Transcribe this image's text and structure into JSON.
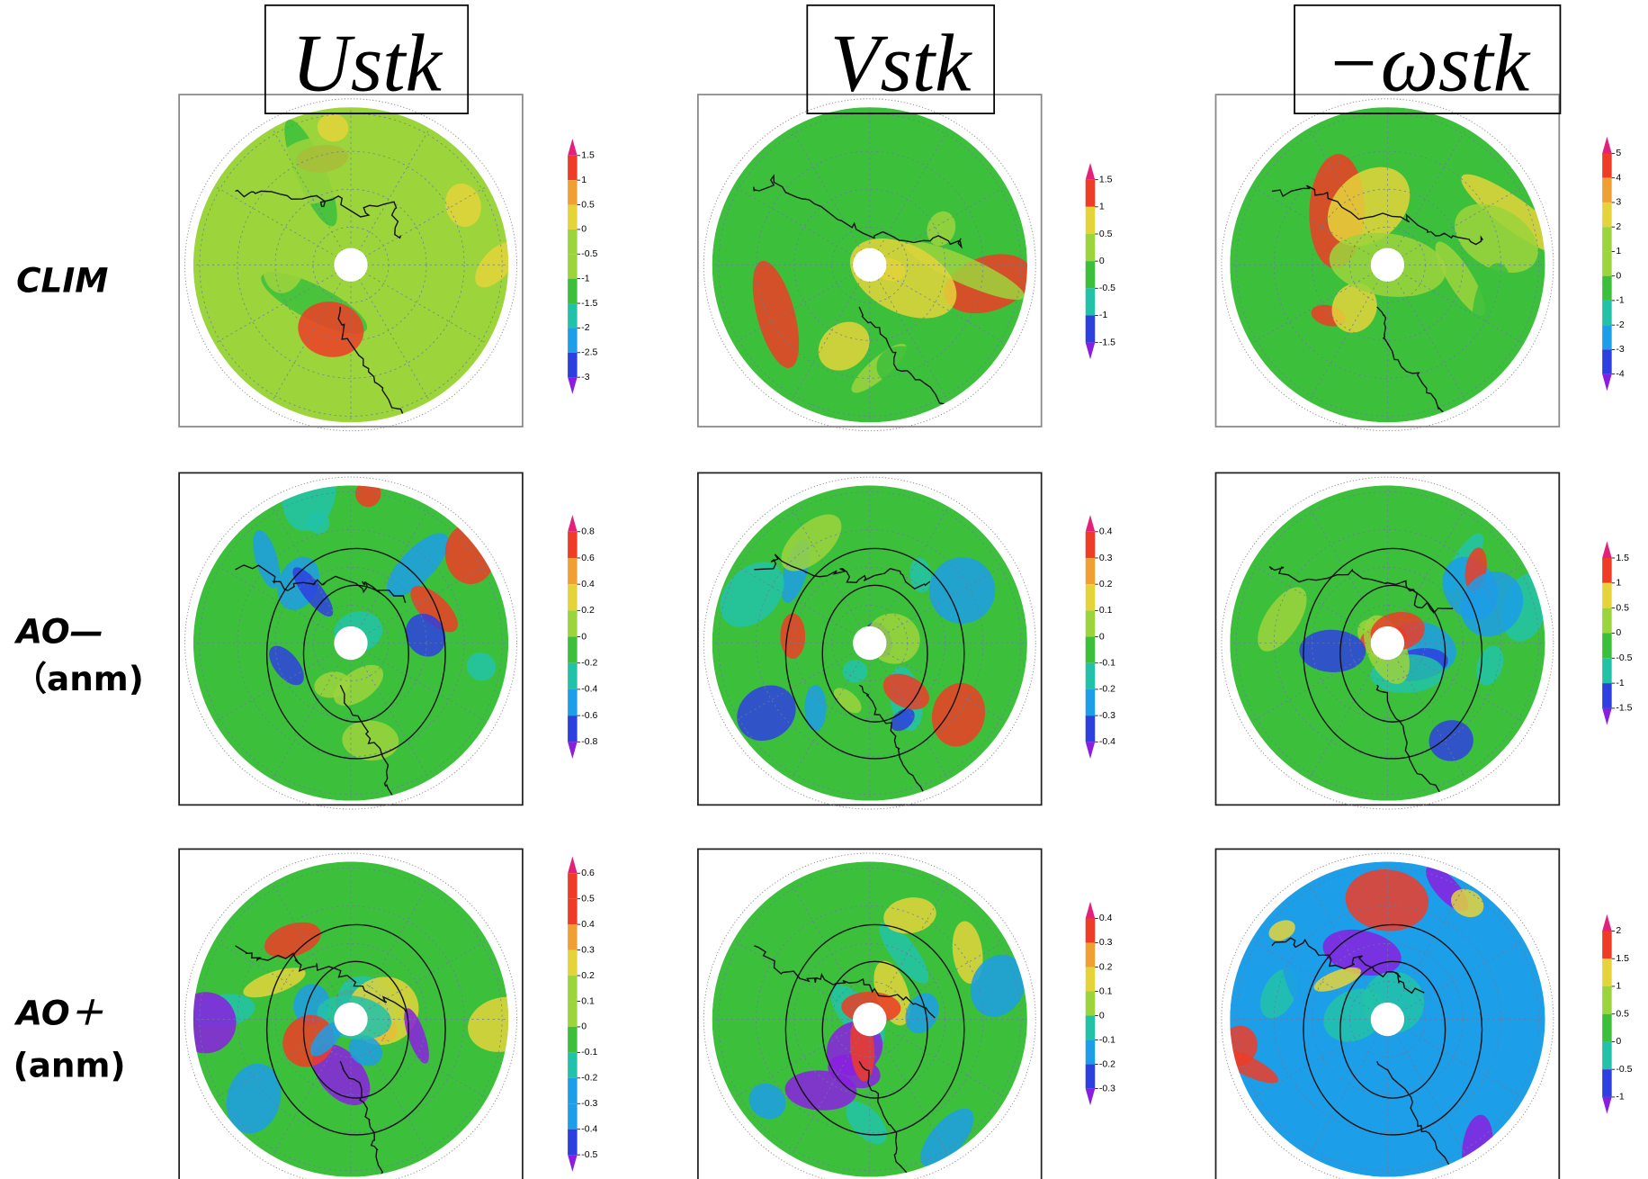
{
  "columns": [
    {
      "title": "Ustk"
    },
    {
      "title": "Vstk"
    },
    {
      "title": "−ωstk"
    }
  ],
  "rows": [
    {
      "label": [
        "CLIM"
      ]
    },
    {
      "label": [
        "AO—",
        "（anm)"
      ]
    },
    {
      "label": [
        "AO＋",
        "(anm)"
      ]
    }
  ],
  "colormap": [
    "#8a1ee0",
    "#2e3fe0",
    "#1c9ee8",
    "#22c2a8",
    "#3cc03c",
    "#9cd43c",
    "#e4d43a",
    "#f0a032",
    "#ee3c26",
    "#e4207c"
  ],
  "panels": [
    [
      {
        "colorbar_ticks": [
          1.5,
          1,
          0.5,
          0,
          -0.5,
          -1,
          -1.5,
          -2,
          -2.5,
          -3
        ]
      },
      {
        "colorbar_ticks": [
          1.5,
          1,
          0.5,
          0,
          -0.5,
          -1,
          -1.5
        ]
      },
      {
        "colorbar_ticks": [
          5,
          4,
          3,
          2,
          1,
          0,
          -1,
          -2,
          -3,
          -4
        ]
      }
    ],
    [
      {
        "colorbar_ticks": [
          0.8,
          0.6,
          0.4,
          0.2,
          0,
          -0.2,
          -0.4,
          -0.6,
          -0.8
        ]
      },
      {
        "colorbar_ticks": [
          0.4,
          0.3,
          0.2,
          0.1,
          0,
          -0.1,
          -0.2,
          -0.3,
          -0.4
        ]
      },
      {
        "colorbar_ticks": [
          1.5,
          1,
          0.5,
          0,
          -0.5,
          -1,
          -1.5
        ]
      }
    ],
    [
      {
        "colorbar_ticks": [
          0.6,
          0.5,
          0.4,
          0.3,
          0.2,
          0.1,
          0,
          -0.1,
          -0.2,
          -0.3,
          -0.4,
          -0.5
        ]
      },
      {
        "colorbar_ticks": [
          0.4,
          0.3,
          0.2,
          0.1,
          0,
          -0.1,
          -0.2,
          -0.3
        ]
      },
      {
        "colorbar_ticks": [
          2,
          1.5,
          1,
          0.5,
          0,
          -0.5,
          -1
        ]
      }
    ]
  ]
}
